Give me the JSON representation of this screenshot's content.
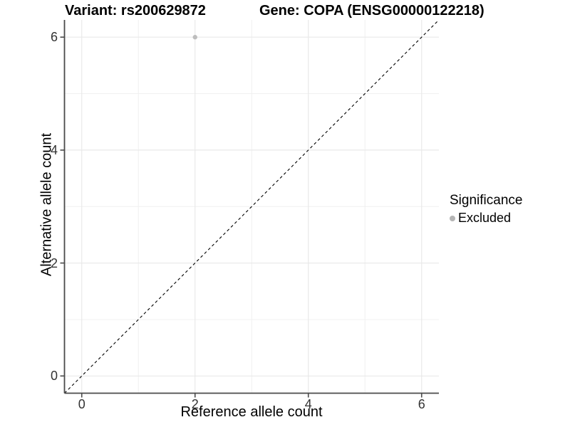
{
  "plot": {
    "title_variant": "Variant: rs200629872",
    "title_gene": "Gene: COPA (ENSG00000122218)"
  },
  "chart_data": {
    "type": "scatter",
    "title": "Variant: rs200629872  /  Gene: COPA (ENSG00000122218)",
    "xlabel": "Reference allele count",
    "ylabel": "Alternative allele count",
    "xlim": [
      -0.305,
      6.305
    ],
    "ylim": [
      -0.305,
      6.305
    ],
    "x_ticks": [
      0,
      2,
      4,
      6
    ],
    "y_ticks": [
      0,
      2,
      4,
      6
    ],
    "minor_gridlines": [
      1,
      3,
      5
    ],
    "grid": true,
    "points": [
      {
        "x": 2,
        "y": 6,
        "series": "Excluded"
      }
    ],
    "reference_line": {
      "type": "identity",
      "from": [
        -0.305,
        -0.305
      ],
      "to": [
        6.305,
        6.305
      ],
      "style": "dashed",
      "color": "#000000"
    },
    "legend": {
      "position": "right",
      "title": "Significance",
      "items": [
        {
          "label": "Excluded",
          "color": "#b5b5b5"
        }
      ]
    },
    "colors": {
      "point": "#bdbdbd",
      "grid_major": "#e9e9e9",
      "grid_minor": "#f0f0f0",
      "axis_line": "#4a4a4a",
      "tick_label": "#333333"
    }
  }
}
